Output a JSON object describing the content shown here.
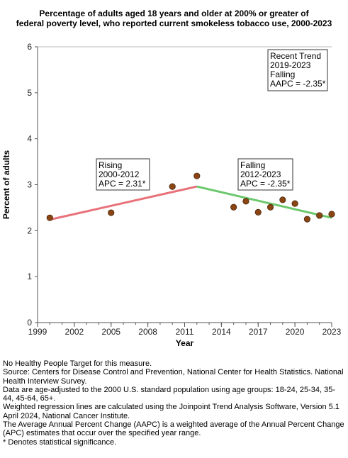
{
  "chart_data": {
    "type": "scatter",
    "title_lines": [
      "Percentage of adults aged 18 years and older at 200% or greater of",
      "federal poverty level, who reported current smokeless tobacco use, 2000-2023"
    ],
    "xlabel": "Year",
    "ylabel": "Percent of adults",
    "xlim": [
      1999,
      2023
    ],
    "ylim": [
      0,
      6
    ],
    "x_ticks": [
      "1999",
      "2002",
      "2005",
      "2008",
      "2011",
      "2014",
      "2017",
      "2020",
      "2023"
    ],
    "y_ticks": [
      "0",
      "1",
      "2",
      "3",
      "4",
      "5",
      "6"
    ],
    "grid": "horizontal-top-line",
    "points": [
      {
        "x": 2000,
        "y": 2.28
      },
      {
        "x": 2005,
        "y": 2.39
      },
      {
        "x": 2010,
        "y": 2.96
      },
      {
        "x": 2012,
        "y": 3.19
      },
      {
        "x": 2015,
        "y": 2.51
      },
      {
        "x": 2016,
        "y": 2.64
      },
      {
        "x": 2017,
        "y": 2.4
      },
      {
        "x": 2018,
        "y": 2.51
      },
      {
        "x": 2019,
        "y": 2.67
      },
      {
        "x": 2020,
        "y": 2.59
      },
      {
        "x": 2021,
        "y": 2.25
      },
      {
        "x": 2022,
        "y": 2.33
      },
      {
        "x": 2023,
        "y": 2.36
      }
    ],
    "trend_segments": [
      {
        "x": [
          2000,
          2012
        ],
        "y": [
          2.24,
          2.96
        ],
        "color": "#e8727a"
      },
      {
        "x": [
          2012,
          2023
        ],
        "y": [
          2.96,
          2.28
        ],
        "color": "#6cc76c"
      }
    ],
    "annotations": [
      {
        "lines": [
          "Rising",
          "2000-2012",
          "APC =  2.31*"
        ]
      },
      {
        "lines": [
          "Falling",
          "2012-2023",
          "APC = -2.35*"
        ]
      },
      {
        "lines": [
          "Recent Trend",
          "2019-2023",
          "Falling",
          "AAPC = -2.35*"
        ]
      }
    ],
    "colors": {
      "point_fill": "#8b4513",
      "axis": "#555555"
    }
  },
  "footnotes": [
    "No Healthy People Target for this measure.",
    "Source: Centers for Disease Control and Prevention, National Center for Health Statistics. National Health Interview Survey.",
    "Data are age-adjusted to the 2000 U.S. standard population using age groups: 18-24, 25-34, 35-44, 45-64, 65+.",
    "Weighted regression lines are calculated using the Joinpoint Trend Analysis Software, Version 5.1 April 2024, National Cancer Institute.",
    "The Average Annual Percent Change (AAPC) is a weighted average of the Annual Percent Change (APC) estimates that occur over the specified year range.",
    "* Denotes statistical significance."
  ]
}
